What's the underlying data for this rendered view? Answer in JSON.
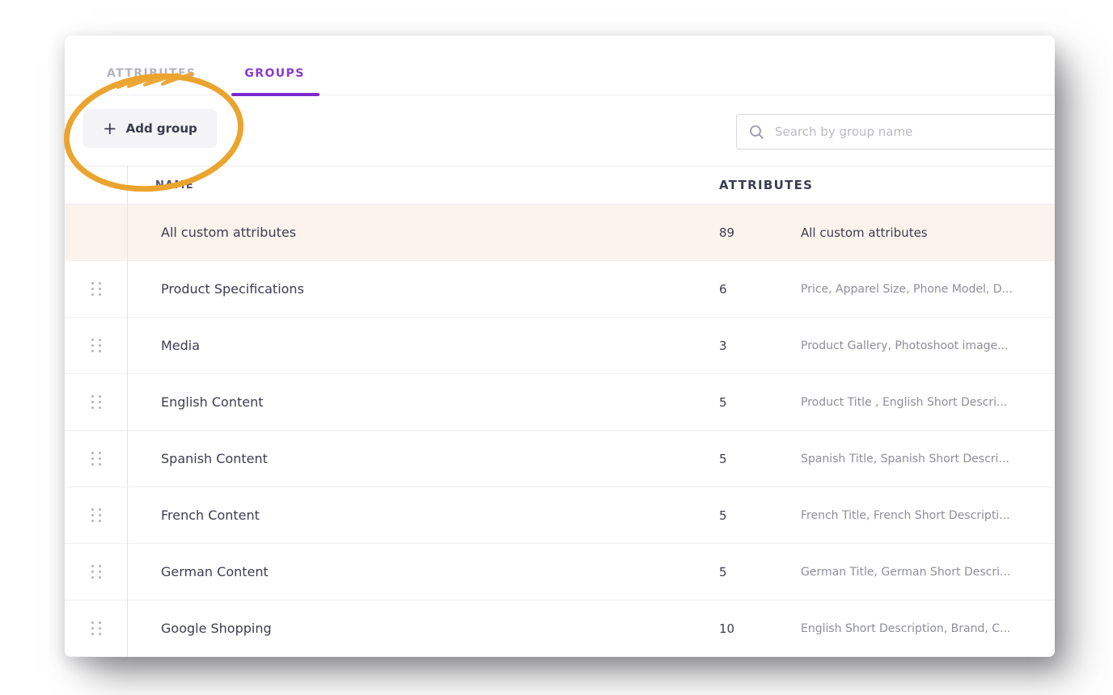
{
  "tabs": [
    {
      "label": "ATTRIBUTES",
      "active": false
    },
    {
      "label": "GROUPS",
      "active": true
    }
  ],
  "toolbar": {
    "add_group_label": "Add group",
    "plus_icon": "+"
  },
  "search": {
    "placeholder": "Search by group name",
    "icon": "magnifier"
  },
  "table": {
    "columns": {
      "name": "NAME",
      "attributes": "ATTRIBUTES"
    },
    "rows": [
      {
        "name": "All custom attributes",
        "count": "89",
        "attributes": "All custom attributes",
        "highlighted": true,
        "draggable": false
      },
      {
        "name": "Product Specifications",
        "count": "6",
        "attributes": "Price, Apparel Size, Phone Model, D...",
        "highlighted": false,
        "draggable": true
      },
      {
        "name": "Media",
        "count": "3",
        "attributes": "Product Gallery, Photoshoot image...",
        "highlighted": false,
        "draggable": true
      },
      {
        "name": "English Content",
        "count": "5",
        "attributes": "Product Title , English Short Descri...",
        "highlighted": false,
        "draggable": true
      },
      {
        "name": "Spanish Content",
        "count": "5",
        "attributes": "Spanish Title, Spanish Short Descri...",
        "highlighted": false,
        "draggable": true
      },
      {
        "name": "French Content",
        "count": "5",
        "attributes": "French Title, French Short Descripti...",
        "highlighted": false,
        "draggable": true
      },
      {
        "name": "German Content",
        "count": "5",
        "attributes": "German Title, German Short Descri...",
        "highlighted": false,
        "draggable": true
      },
      {
        "name": "Google Shopping",
        "count": "10",
        "attributes": "English Short Description, Brand, C...",
        "highlighted": false,
        "draggable": true
      }
    ]
  },
  "annotation": {
    "shape": "hand-drawn ellipse around Add group button with scratch-out over ATTRIBUTES tab",
    "color": "#eba42e"
  },
  "colors": {
    "accent_purple": "#8a3ad2",
    "underline_purple": "#7b2ad0",
    "highlight_row": "#fdf3ed",
    "annotation_orange": "#eba42e"
  }
}
